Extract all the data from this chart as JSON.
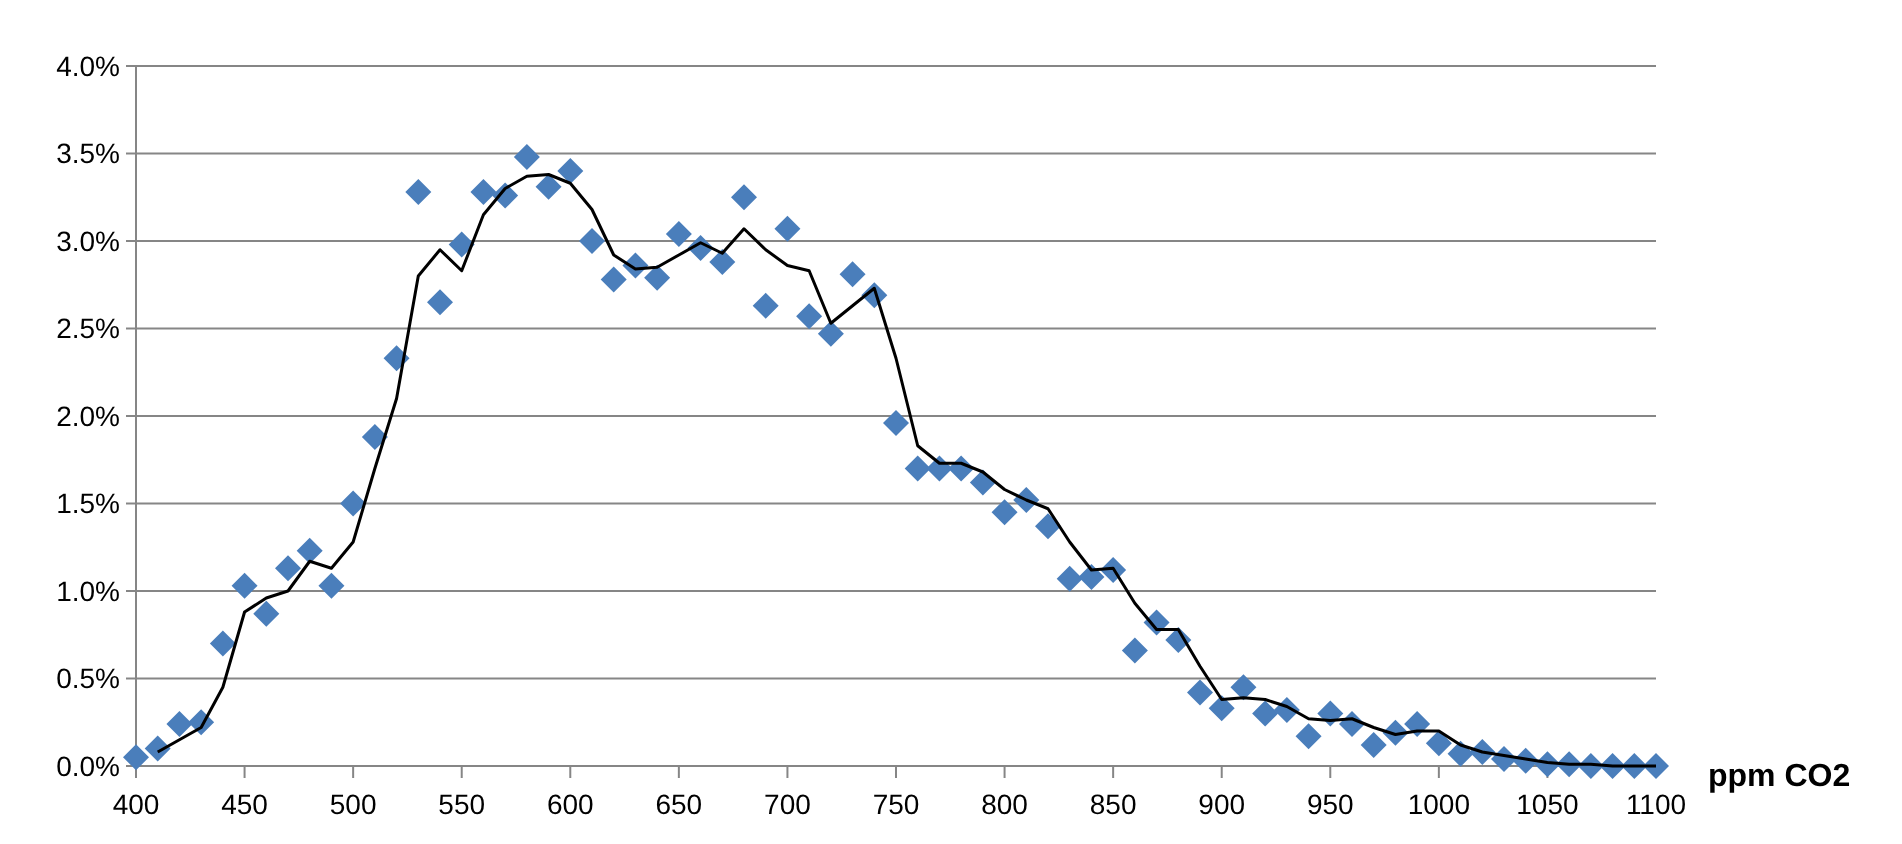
{
  "chart_data": {
    "type": "scatter",
    "xlabel": "ppm CO2",
    "xlim": [
      400,
      1100
    ],
    "xticks": [
      400,
      450,
      500,
      550,
      600,
      650,
      700,
      750,
      800,
      850,
      900,
      950,
      1000,
      1050,
      1100
    ],
    "ylim": [
      0,
      4
    ],
    "yticks": [
      {
        "value": 0,
        "label": "0.0%"
      },
      {
        "value": 0.5,
        "label": "0.5%"
      },
      {
        "value": 1,
        "label": "1.0%"
      },
      {
        "value": 1.5,
        "label": "1.5%"
      },
      {
        "value": 2,
        "label": "2.0%"
      },
      {
        "value": 2.5,
        "label": "2.5%"
      },
      {
        "value": 3,
        "label": "3.0%"
      },
      {
        "value": 3.5,
        "label": "3.5%"
      },
      {
        "value": 4,
        "label": "4.0%"
      }
    ],
    "grid": "y",
    "series": [
      {
        "color": "#4a7ebb",
        "marker": "diamond",
        "x": [
          400,
          410,
          420,
          430,
          440,
          450,
          460,
          470,
          480,
          490,
          500,
          510,
          520,
          530,
          540,
          550,
          560,
          570,
          580,
          590,
          600,
          610,
          620,
          630,
          640,
          650,
          660,
          670,
          680,
          690,
          700,
          710,
          720,
          730,
          740,
          750,
          760,
          770,
          780,
          790,
          800,
          810,
          820,
          830,
          840,
          850,
          860,
          870,
          880,
          890,
          900,
          910,
          920,
          930,
          940,
          950,
          960,
          970,
          980,
          990,
          1000,
          1010,
          1020,
          1030,
          1040,
          1050,
          1060,
          1070,
          1080,
          1090,
          1100
        ],
        "values": [
          0.05,
          0.1,
          0.24,
          0.25,
          0.7,
          1.03,
          0.87,
          1.13,
          1.23,
          1.03,
          1.5,
          1.88,
          2.33,
          3.28,
          2.65,
          2.98,
          3.28,
          3.26,
          3.48,
          3.31,
          3.4,
          3.0,
          2.78,
          2.86,
          2.79,
          3.04,
          2.96,
          2.88,
          3.25,
          2.63,
          3.07,
          2.57,
          2.47,
          2.81,
          2.69,
          1.96,
          1.7,
          1.7,
          1.7,
          1.62,
          1.45,
          1.52,
          1.37,
          1.07,
          1.08,
          1.12,
          0.66,
          0.82,
          0.72,
          0.42,
          0.33,
          0.45,
          0.3,
          0.32,
          0.17,
          0.3,
          0.24,
          0.12,
          0.19,
          0.24,
          0.13,
          0.07,
          0.08,
          0.04,
          0.03,
          0.01,
          0.01,
          0,
          0,
          0,
          0
        ]
      },
      {
        "type": "line",
        "color": "#000000",
        "marker": "none",
        "line_style": "solid",
        "x": [
          410,
          420,
          430,
          440,
          450,
          460,
          470,
          480,
          490,
          500,
          510,
          520,
          530,
          540,
          550,
          560,
          570,
          580,
          590,
          600,
          610,
          620,
          630,
          640,
          650,
          660,
          670,
          680,
          690,
          700,
          710,
          720,
          730,
          740,
          750,
          760,
          770,
          780,
          790,
          800,
          810,
          820,
          830,
          840,
          850,
          860,
          870,
          880,
          890,
          900,
          910,
          920,
          930,
          940,
          950,
          960,
          970,
          980,
          990,
          1000,
          1010,
          1020,
          1030,
          1040,
          1050,
          1060,
          1070,
          1080,
          1090,
          1100
        ],
        "values": [
          0.08,
          0.15,
          0.22,
          0.45,
          0.88,
          0.96,
          1.0,
          1.17,
          1.13,
          1.28,
          1.7,
          2.1,
          2.8,
          2.95,
          2.83,
          3.15,
          3.3,
          3.37,
          3.38,
          3.33,
          3.18,
          2.92,
          2.84,
          2.85,
          2.92,
          2.99,
          2.93,
          3.07,
          2.95,
          2.86,
          2.83,
          2.53,
          2.63,
          2.73,
          2.33,
          1.83,
          1.73,
          1.73,
          1.68,
          1.58,
          1.52,
          1.47,
          1.28,
          1.12,
          1.13,
          0.93,
          0.78,
          0.78,
          0.57,
          0.38,
          0.39,
          0.38,
          0.34,
          0.27,
          0.26,
          0.27,
          0.22,
          0.18,
          0.2,
          0.2,
          0.12,
          0.08,
          0.06,
          0.04,
          0.02,
          0.01,
          0.01,
          0,
          0,
          0
        ]
      }
    ]
  }
}
